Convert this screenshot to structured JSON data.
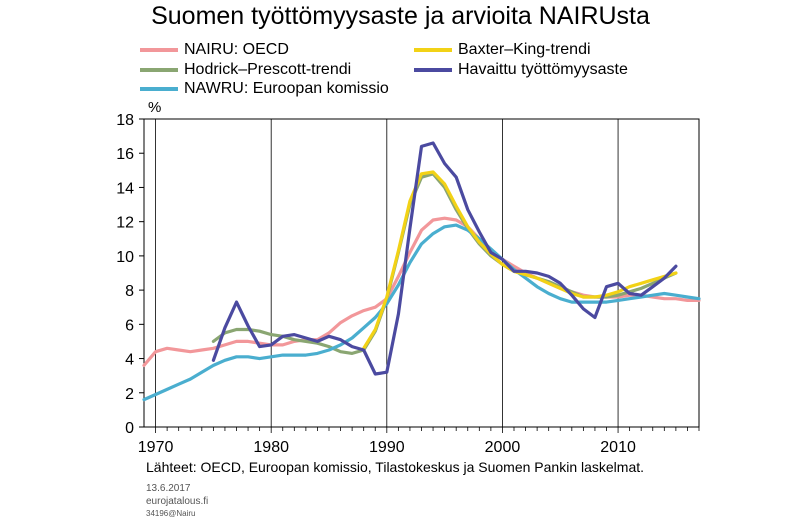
{
  "chart_data": {
    "type": "line",
    "title": "Suomen työttömyysaste ja arvioita NAIRUsta",
    "ylabel": "%",
    "xlabel": "",
    "ylim": [
      0,
      18
    ],
    "xlim": [
      1969,
      2017
    ],
    "yticks": [
      "0",
      "2",
      "4",
      "6",
      "8",
      "10",
      "12",
      "14",
      "16",
      "18"
    ],
    "xticks": [
      "1970",
      "1980",
      "1990",
      "2000",
      "2010"
    ],
    "xtick_values": [
      1970,
      1980,
      1990,
      2000,
      2010
    ],
    "grid": true,
    "series": [
      {
        "name": "NAIRU: OECD",
        "color": "#f2979a",
        "x": [
          1969,
          1970,
          1971,
          1972,
          1973,
          1974,
          1975,
          1976,
          1977,
          1978,
          1979,
          1980,
          1981,
          1982,
          1983,
          1984,
          1985,
          1986,
          1987,
          1988,
          1989,
          1990,
          1991,
          1992,
          1993,
          1994,
          1995,
          1996,
          1997,
          1998,
          1999,
          2000,
          2001,
          2002,
          2003,
          2004,
          2005,
          2006,
          2007,
          2008,
          2009,
          2010,
          2011,
          2012,
          2013,
          2014,
          2015,
          2016,
          2017
        ],
        "values": [
          3.6,
          4.4,
          4.6,
          4.5,
          4.4,
          4.5,
          4.6,
          4.8,
          5.0,
          5.0,
          4.9,
          4.8,
          4.8,
          5.0,
          5.1,
          5.1,
          5.5,
          6.1,
          6.5,
          6.8,
          7.0,
          7.5,
          8.8,
          10.2,
          11.5,
          12.1,
          12.2,
          12.1,
          11.7,
          11.0,
          10.3,
          9.8,
          9.4,
          9.0,
          8.7,
          8.4,
          8.1,
          7.9,
          7.7,
          7.6,
          7.6,
          7.6,
          7.7,
          7.7,
          7.6,
          7.5,
          7.5,
          7.4,
          7.4
        ]
      },
      {
        "name": "Hodrick–Prescott-trendi",
        "color": "#8aa672",
        "x": [
          1975,
          1976,
          1977,
          1978,
          1979,
          1980,
          1981,
          1982,
          1983,
          1984,
          1985,
          1986,
          1987,
          1988,
          1989,
          1990,
          1991,
          1992,
          1993,
          1994,
          1995,
          1996,
          1997,
          1998,
          1999,
          2000,
          2001,
          2002,
          2003,
          2004,
          2005,
          2006,
          2007,
          2008,
          2009,
          2010,
          2011,
          2012,
          2013,
          2014,
          2015
        ],
        "values": [
          5.0,
          5.5,
          5.7,
          5.7,
          5.6,
          5.4,
          5.3,
          5.1,
          5.0,
          4.9,
          4.7,
          4.4,
          4.3,
          4.5,
          5.6,
          7.5,
          10.2,
          13.0,
          14.6,
          14.8,
          14.0,
          12.7,
          11.6,
          10.7,
          10.0,
          9.5,
          9.1,
          8.9,
          8.7,
          8.5,
          8.2,
          7.9,
          7.6,
          7.6,
          7.6,
          7.7,
          7.9,
          8.1,
          8.4,
          8.7,
          9.0
        ]
      },
      {
        "name": "NAWRU: Euroopan komissio",
        "color": "#4aaecf",
        "x": [
          1969,
          1970,
          1971,
          1972,
          1973,
          1974,
          1975,
          1976,
          1977,
          1978,
          1979,
          1980,
          1981,
          1982,
          1983,
          1984,
          1985,
          1986,
          1987,
          1988,
          1989,
          1990,
          1991,
          1992,
          1993,
          1994,
          1995,
          1996,
          1997,
          1998,
          1999,
          2000,
          2001,
          2002,
          2003,
          2004,
          2005,
          2006,
          2007,
          2008,
          2009,
          2010,
          2011,
          2012,
          2013,
          2014,
          2015,
          2016,
          2017
        ],
        "values": [
          1.6,
          1.9,
          2.2,
          2.5,
          2.8,
          3.2,
          3.6,
          3.9,
          4.1,
          4.1,
          4.0,
          4.1,
          4.2,
          4.2,
          4.2,
          4.3,
          4.5,
          4.8,
          5.2,
          5.8,
          6.4,
          7.2,
          8.3,
          9.6,
          10.7,
          11.3,
          11.7,
          11.8,
          11.5,
          11.0,
          10.4,
          9.8,
          9.2,
          8.7,
          8.2,
          7.8,
          7.5,
          7.3,
          7.3,
          7.3,
          7.3,
          7.4,
          7.5,
          7.6,
          7.7,
          7.8,
          7.7,
          7.6,
          7.5
        ]
      },
      {
        "name": "Baxter–King-trendi",
        "color": "#f2d216",
        "x": [
          1988,
          1989,
          1990,
          1991,
          1992,
          1993,
          1994,
          1995,
          1996,
          1997,
          1998,
          1999,
          2000,
          2001,
          2002,
          2003,
          2004,
          2005,
          2006,
          2007,
          2008,
          2009,
          2010,
          2011,
          2012,
          2013,
          2014,
          2015
        ],
        "values": [
          4.6,
          5.7,
          7.6,
          10.3,
          13.2,
          14.8,
          14.9,
          14.2,
          12.9,
          11.7,
          10.8,
          10.1,
          9.5,
          9.1,
          8.9,
          8.7,
          8.4,
          8.1,
          7.8,
          7.6,
          7.6,
          7.7,
          7.9,
          8.2,
          8.4,
          8.6,
          8.8,
          9.0
        ]
      },
      {
        "name": "Havaittu työttömyysaste",
        "color": "#4b4aa0",
        "x": [
          1975,
          1976,
          1977,
          1978,
          1979,
          1980,
          1981,
          1982,
          1983,
          1984,
          1985,
          1986,
          1987,
          1988,
          1989,
          1990,
          1991,
          1992,
          1993,
          1994,
          1995,
          1996,
          1997,
          1998,
          1999,
          2000,
          2001,
          2002,
          2003,
          2004,
          2005,
          2006,
          2007,
          2008,
          2009,
          2010,
          2011,
          2012,
          2013,
          2014,
          2015
        ],
        "values": [
          3.9,
          5.8,
          7.3,
          5.9,
          4.7,
          4.8,
          5.3,
          5.4,
          5.2,
          5.0,
          5.3,
          5.1,
          4.7,
          4.5,
          3.1,
          3.2,
          6.6,
          11.6,
          16.4,
          16.6,
          15.4,
          14.6,
          12.7,
          11.4,
          10.2,
          9.8,
          9.1,
          9.1,
          9.0,
          8.8,
          8.4,
          7.7,
          6.9,
          6.4,
          8.2,
          8.4,
          7.8,
          7.7,
          8.2,
          8.7,
          9.4
        ]
      }
    ]
  },
  "legend": {
    "items": [
      {
        "label": "NAIRU: OECD",
        "color": "#f2979a"
      },
      {
        "label": "Baxter–King-trendi",
        "color": "#f2d216"
      },
      {
        "label": "Hodrick–Prescott-trendi",
        "color": "#8aa672"
      },
      {
        "label": "Havaittu työttömyysaste",
        "color": "#4b4aa0"
      },
      {
        "label": "NAWRU: Euroopan komissio",
        "color": "#4aaecf"
      }
    ]
  },
  "footer": {
    "source": "Lähteet: OECD, Euroopan komissio, Tilastokeskus ja Suomen Pankin laskelmat.",
    "date": "13.6.2017",
    "site": "eurojatalous.fi",
    "code": "34196@Nairu"
  }
}
